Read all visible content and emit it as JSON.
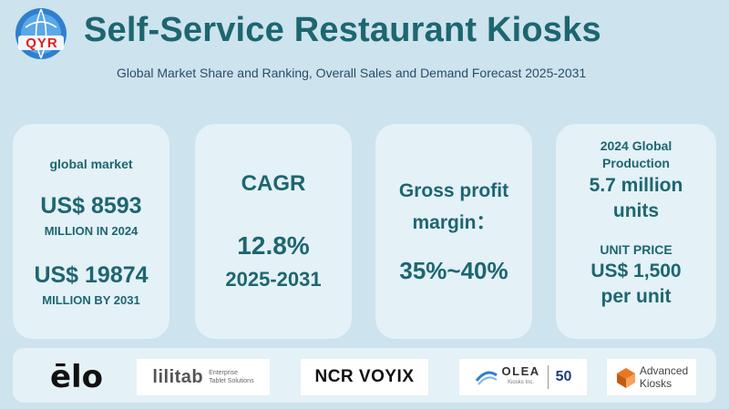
{
  "header": {
    "logo_text": "QYR",
    "title": "Self-Service Restaurant Kiosks",
    "subtitle": "Global Market Share and Ranking, Overall Sales and Demand Forecast 2025-2031"
  },
  "cards": {
    "market": {
      "label": "global market",
      "value_2024": "US$ 8593",
      "unit_2024": "MILLION IN 2024",
      "value_2031": "US$ 19874",
      "unit_2031": "MILLION BY 2031"
    },
    "cagr": {
      "label": "CAGR",
      "value": "12.8%",
      "period": "2025-2031"
    },
    "margin": {
      "label_line1": "Gross profit",
      "label_line2": "margin：",
      "value": "35%~40%"
    },
    "production": {
      "label_line1": "2024 Global",
      "label_line2": "Production",
      "value_line1": "5.7 million",
      "value_line2": "units",
      "price_label": "UNIT PRICE",
      "price_value": "US$ 1,500",
      "price_unit": "per unit"
    }
  },
  "brands": {
    "elo": "ēlo",
    "lilitab_name": "lilitab",
    "lilitab_tag1": "Enterprise",
    "lilitab_tag2": "Tablet Solutions",
    "ncr": "NCR VOYIX",
    "olea_name": "OLEA",
    "olea_sub": "Kiosks Inc.",
    "olea_years": "50",
    "advanced_line1": "Advanced",
    "advanced_line2": "Kiosks"
  },
  "colors": {
    "background": "#cde3ee",
    "card": "#e4f1f7",
    "heading": "#1d6670",
    "logo_red": "#e02020",
    "logo_blue": "#2f7fd0"
  }
}
